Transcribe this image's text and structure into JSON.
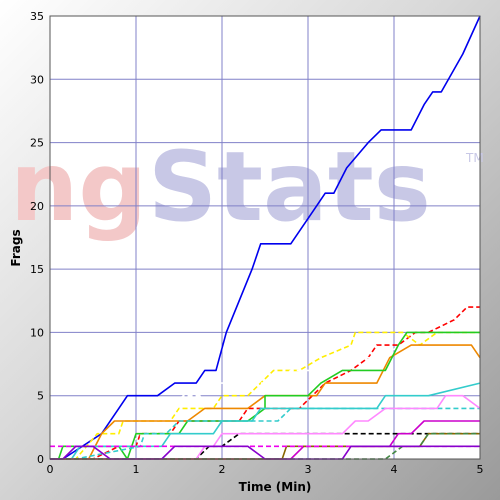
{
  "chart_data": {
    "type": "line",
    "watermark": {
      "first": "ng",
      "second": "Stats",
      "mark": "TM"
    },
    "xlabel": "Time (Min)",
    "ylabel": "Frags",
    "xlim": [
      0,
      5
    ],
    "ylim": [
      0,
      35
    ],
    "xticks": [
      "0",
      "1",
      "2",
      "3",
      "4",
      "5"
    ],
    "yticks": [
      "0",
      "5",
      "10",
      "15",
      "20",
      "25",
      "30",
      "35"
    ],
    "grid": true,
    "colors": {
      "plot_bg": "#ffffff",
      "grid": "#8080c8"
    },
    "series": [
      {
        "color": "#0000ee",
        "dash": false,
        "points": [
          [
            0,
            0
          ],
          [
            0.15,
            0
          ],
          [
            0.6,
            2
          ],
          [
            0.8,
            4
          ],
          [
            0.9,
            5
          ],
          [
            1.25,
            5
          ],
          [
            1.45,
            6
          ],
          [
            1.7,
            6
          ],
          [
            1.8,
            7
          ],
          [
            1.93,
            7
          ],
          [
            2.05,
            10
          ],
          [
            2.35,
            15
          ],
          [
            2.45,
            17
          ],
          [
            2.8,
            17
          ],
          [
            3.1,
            20
          ],
          [
            3.2,
            21
          ],
          [
            3.3,
            21
          ],
          [
            3.45,
            23
          ],
          [
            3.7,
            25
          ],
          [
            3.85,
            26
          ],
          [
            4.2,
            26
          ],
          [
            4.35,
            28
          ],
          [
            4.45,
            29
          ],
          [
            4.55,
            29
          ],
          [
            4.8,
            32
          ],
          [
            5,
            35
          ]
        ]
      },
      {
        "color": "#ff0000",
        "dash": true,
        "points": [
          [
            0,
            0
          ],
          [
            0.5,
            0
          ],
          [
            0.8,
            1
          ],
          [
            1,
            1
          ],
          [
            1.05,
            2
          ],
          [
            1.4,
            2
          ],
          [
            1.5,
            3
          ],
          [
            2.2,
            3
          ],
          [
            2.3,
            4
          ],
          [
            2.9,
            4
          ],
          [
            3.2,
            6
          ],
          [
            3.5,
            7
          ],
          [
            3.7,
            8
          ],
          [
            3.8,
            9
          ],
          [
            4.05,
            9
          ],
          [
            4.25,
            10
          ],
          [
            4.4,
            10
          ],
          [
            4.7,
            11
          ],
          [
            4.85,
            12
          ],
          [
            5,
            12
          ]
        ]
      },
      {
        "color": "#ffee00",
        "dash": true,
        "points": [
          [
            0,
            0
          ],
          [
            0.3,
            0
          ],
          [
            0.55,
            2
          ],
          [
            0.8,
            2
          ],
          [
            0.85,
            3
          ],
          [
            1.4,
            3
          ],
          [
            1.5,
            4
          ],
          [
            1.9,
            4
          ],
          [
            2.0,
            5
          ],
          [
            2.3,
            5
          ],
          [
            2.6,
            7
          ],
          [
            2.9,
            7
          ],
          [
            3.15,
            8
          ],
          [
            3.5,
            9
          ],
          [
            3.55,
            10
          ],
          [
            4.1,
            10
          ],
          [
            4.3,
            9
          ],
          [
            4.5,
            10
          ],
          [
            5,
            10
          ]
        ]
      },
      {
        "color": "#ffffff",
        "dash": true,
        "points": [
          [
            0,
            0
          ],
          [
            0.6,
            0
          ],
          [
            0.85,
            1
          ],
          [
            1.1,
            2
          ],
          [
            1.4,
            4
          ],
          [
            1.55,
            5
          ],
          [
            1.75,
            5
          ],
          [
            1.85,
            6
          ],
          [
            2.6,
            6
          ],
          [
            2.8,
            7
          ],
          [
            3.1,
            7
          ],
          [
            3.3,
            8
          ],
          [
            3.9,
            8
          ],
          [
            4.05,
            9
          ],
          [
            4.3,
            8
          ],
          [
            4.9,
            8
          ],
          [
            5,
            7
          ]
        ]
      },
      {
        "color": "#ee8800",
        "dash": false,
        "points": [
          [
            0,
            0
          ],
          [
            0.45,
            0
          ],
          [
            0.6,
            2
          ],
          [
            0.75,
            3
          ],
          [
            1.2,
            3
          ],
          [
            1.25,
            3
          ],
          [
            1.6,
            3
          ],
          [
            1.8,
            4
          ],
          [
            2.3,
            4
          ],
          [
            2.5,
            5
          ],
          [
            3.1,
            5
          ],
          [
            3.2,
            6
          ],
          [
            3.8,
            6
          ],
          [
            3.95,
            8
          ],
          [
            4.2,
            9
          ],
          [
            4.9,
            9
          ],
          [
            5,
            8
          ]
        ]
      },
      {
        "color": "#22cc22",
        "dash": false,
        "points": [
          [
            0,
            0
          ],
          [
            0.1,
            0
          ],
          [
            0.15,
            1
          ],
          [
            0.8,
            1
          ],
          [
            0.9,
            0
          ],
          [
            1.0,
            2
          ],
          [
            1.5,
            2
          ],
          [
            1.6,
            3
          ],
          [
            2.3,
            3
          ],
          [
            2.5,
            4
          ],
          [
            2.5,
            5
          ],
          [
            3.0,
            5
          ],
          [
            3.15,
            6
          ],
          [
            3.4,
            7
          ],
          [
            3.9,
            7
          ],
          [
            4.05,
            9
          ],
          [
            4.15,
            10
          ],
          [
            4.6,
            10
          ],
          [
            5,
            10
          ]
        ]
      },
      {
        "color": "#33cccc",
        "dash": false,
        "points": [
          [
            0,
            0
          ],
          [
            0.25,
            0
          ],
          [
            0.35,
            1
          ],
          [
            1.3,
            1
          ],
          [
            1.4,
            2
          ],
          [
            1.9,
            2
          ],
          [
            2.0,
            3
          ],
          [
            2.35,
            3
          ],
          [
            2.45,
            4
          ],
          [
            3.8,
            4
          ],
          [
            3.9,
            5
          ],
          [
            4.4,
            5
          ],
          [
            5,
            6
          ]
        ]
      },
      {
        "color": "#33cccc",
        "dash": true,
        "points": [
          [
            0,
            0
          ],
          [
            0.2,
            0
          ],
          [
            0.3,
            0
          ],
          [
            1.05,
            1
          ],
          [
            1.1,
            2
          ],
          [
            1.35,
            2
          ],
          [
            1.5,
            3
          ],
          [
            2.6,
            3
          ],
          [
            2.65,
            3
          ],
          [
            2.8,
            4
          ],
          [
            3.5,
            4
          ],
          [
            3.6,
            4
          ],
          [
            5,
            4
          ]
        ]
      },
      {
        "color": "#000000",
        "dash": true,
        "points": [
          [
            0,
            0
          ],
          [
            1.7,
            0
          ],
          [
            1.85,
            1
          ],
          [
            2.0,
            1
          ],
          [
            2.2,
            2
          ],
          [
            3.5,
            2
          ],
          [
            3.6,
            2
          ],
          [
            5,
            2
          ]
        ]
      },
      {
        "color": "#ff88ff",
        "dash": false,
        "points": [
          [
            0,
            0
          ],
          [
            1.7,
            0
          ],
          [
            1.8,
            1
          ],
          [
            1.9,
            1
          ],
          [
            2.0,
            2
          ],
          [
            3.4,
            2
          ],
          [
            3.55,
            3
          ],
          [
            3.7,
            3
          ],
          [
            3.9,
            4
          ],
          [
            4.5,
            4
          ],
          [
            4.6,
            5
          ],
          [
            4.8,
            5
          ],
          [
            5,
            4
          ]
        ]
      },
      {
        "color": "#cc00cc",
        "dash": false,
        "points": [
          [
            0,
            0
          ],
          [
            2.8,
            0
          ],
          [
            2.95,
            1
          ],
          [
            3.95,
            1
          ],
          [
            4.05,
            2
          ],
          [
            4.2,
            2
          ],
          [
            4.35,
            3
          ],
          [
            5,
            3
          ]
        ]
      },
      {
        "color": "#886600",
        "dash": false,
        "points": [
          [
            0,
            0
          ],
          [
            2.7,
            0
          ],
          [
            2.75,
            1
          ],
          [
            3.6,
            1
          ],
          [
            3.8,
            1
          ],
          [
            4.3,
            1
          ],
          [
            4.4,
            2
          ],
          [
            5,
            2
          ]
        ]
      },
      {
        "color": "#448844",
        "dash": true,
        "points": [
          [
            0,
            0
          ],
          [
            3.9,
            0
          ],
          [
            4.1,
            1
          ],
          [
            4.3,
            1
          ],
          [
            4.4,
            2
          ],
          [
            5,
            2
          ]
        ]
      },
      {
        "color": "#ee00ee",
        "dash": true,
        "points": [
          [
            0,
            1
          ],
          [
            5,
            1
          ]
        ]
      },
      {
        "color": "#8800cc",
        "dash": false,
        "points": [
          [
            0,
            0
          ],
          [
            0.15,
            0
          ],
          [
            0.3,
            1
          ],
          [
            0.5,
            1
          ],
          [
            0.7,
            0
          ],
          [
            1.3,
            0
          ],
          [
            1.45,
            1
          ],
          [
            2.3,
            1
          ],
          [
            2.5,
            0
          ],
          [
            3.4,
            0
          ],
          [
            3.5,
            1
          ],
          [
            5,
            1
          ]
        ]
      }
    ]
  }
}
